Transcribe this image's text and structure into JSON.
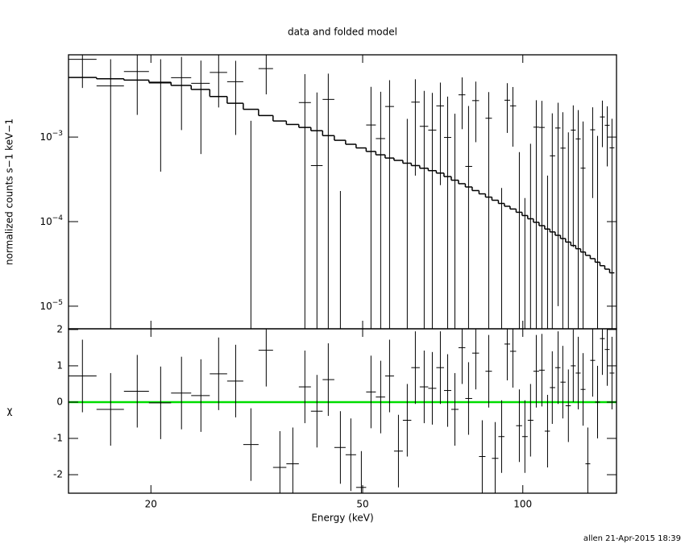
{
  "chart_data": {
    "type": "spectrum",
    "title": "data and folded model",
    "xlabel": "Energy (keV)",
    "log_x": true,
    "xlim": [
      14,
      150
    ],
    "xticks": [
      20,
      50,
      100
    ],
    "x": [
      14.87,
      16.8,
      18.85,
      20.86,
      22.83,
      24.83,
      26.81,
      28.86,
      30.83,
      32.94,
      34.95,
      36.96,
      38.94,
      41.03,
      43.09,
      45.41,
      47.51,
      49.72,
      51.84,
      54.06,
      56.18,
      58.38,
      60.65,
      62.81,
      65.26,
      67.59,
      69.99,
      72.23,
      74.53,
      76.9,
      79.07,
      81.59,
      83.9,
      86.28,
      88.72,
      91.24,
      93.49,
      95.8,
      98.51,
      100.9,
      103.4,
      106.0,
      108.6,
      111.3,
      113.6,
      116.5,
      118.9,
      121.8,
      124.4,
      127.1,
      129.8,
      132.5,
      135.3,
      138.2,
      141.1,
      144.1,
      147.1
    ],
    "panels": [
      {
        "ylabel": "normalized counts s−1 keV−1",
        "log_y": true,
        "ylim": [
          5.4e-06,
          0.0094
        ],
        "yticks": [
          {
            "value": 1e-05,
            "label": "10−5"
          },
          {
            "value": 0.0001,
            "label": "10−4"
          },
          {
            "value": 0.001,
            "label": "10−3"
          }
        ],
        "color": "#000000",
        "model_color": "#000000",
        "values": [
          0.00831,
          0.00403,
          0.00596,
          0.00436,
          0.00504,
          0.00433,
          0.00581,
          0.00452,
          -0.00179,
          0.00645,
          -0.00414,
          -0.00381,
          0.00256,
          0.00046,
          0.00279,
          -0.00252,
          -0.00307,
          -0.00537,
          0.00139,
          0.00096,
          0.0023,
          -0.00264,
          -0.00065,
          0.00259,
          0.00134,
          0.00121,
          0.00234,
          0.00099,
          -8e-05,
          0.00316,
          0.00045,
          0.0027,
          -0.00246,
          0.00167,
          -0.00244,
          -0.0014,
          0.00273,
          0.00234,
          -0.000866,
          -0.0013,
          -0.000617,
          0.00131,
          0.0013,
          -0.00099,
          0.0006,
          0.00128,
          0.00074,
          -6.27e-05,
          0.00121,
          0.000952,
          0.000429,
          -0.00178,
          0.00122,
          3.31e-05,
          0.00173,
          0.00138,
          0.000745
        ],
        "errors": [
          0.0045,
          0.00431,
          0.00413,
          0.00397,
          0.00383,
          0.0037,
          0.00357,
          0.00346,
          0.00335,
          0.00325,
          0.00316,
          0.00307,
          0.00299,
          0.00291,
          0.00283,
          0.00275,
          0.00268,
          0.0026,
          0.00254,
          0.00247,
          0.00241,
          0.00235,
          0.00229,
          0.00224,
          0.00218,
          0.00212,
          0.00207,
          0.00202,
          0.00197,
          0.00192,
          0.00188,
          0.00183,
          0.00178,
          0.00174,
          0.00169,
          0.00165,
          0.00161,
          0.00157,
          0.00153,
          0.00149,
          0.00145,
          0.00142,
          0.00138,
          0.00134,
          0.00131,
          0.00127,
          0.00123,
          0.0012,
          0.00116,
          0.00113,
          0.0011,
          0.00107,
          0.00103,
          0.001,
          0.00097,
          0.00093,
          0.0009
        ],
        "model": [
          0.00507,
          0.00489,
          0.00472,
          0.00444,
          0.00408,
          0.00366,
          0.00302,
          0.00251,
          0.00213,
          0.0018,
          0.00155,
          0.00141,
          0.0013,
          0.00119,
          0.00104,
          0.000916,
          0.000822,
          0.000744,
          0.000676,
          0.000617,
          0.000565,
          0.00053,
          0.000491,
          0.00046,
          0.000428,
          0.000401,
          0.000375,
          0.000341,
          0.000309,
          0.000281,
          0.000257,
          0.000233,
          0.000213,
          0.000195,
          0.000179,
          0.000164,
          0.000152,
          0.000141,
          0.000129,
          0.000118,
          0.000108,
          9.82e-05,
          8.96e-05,
          8.17e-05,
          7.55e-05,
          6.89e-05,
          6.31e-05,
          5.73e-05,
          5.22e-05,
          4.78e-05,
          4.37e-05,
          3.99e-05,
          3.65e-05,
          3.31e-05,
          3.01e-05,
          2.74e-05,
          2.48e-05
        ]
      },
      {
        "ylabel": "χ",
        "log_y": false,
        "ylim": [
          -2.51,
          2.02
        ],
        "yticks": [
          -2,
          -1,
          0,
          1,
          2
        ],
        "color": "#000000",
        "error": 1,
        "reference": 0,
        "reference_color": "#00dd00",
        "values": [
          0.72,
          -0.2,
          0.3,
          -0.02,
          0.25,
          0.18,
          0.78,
          0.58,
          -1.17,
          1.43,
          -1.8,
          -1.7,
          0.42,
          -0.25,
          0.62,
          -1.25,
          -1.45,
          -2.35,
          0.28,
          0.14,
          0.72,
          -1.35,
          -0.5,
          0.95,
          0.42,
          0.38,
          0.95,
          0.32,
          -0.2,
          1.5,
          0.1,
          1.35,
          -1.5,
          0.85,
          -1.55,
          -0.95,
          1.6,
          1.4,
          -0.65,
          -0.95,
          -0.5,
          0.85,
          0.88,
          -0.8,
          0.4,
          0.95,
          0.55,
          -0.1,
          1.0,
          0.8,
          0.35,
          -1.7,
          1.15,
          0.0,
          1.75,
          1.45,
          0.8
        ]
      }
    ]
  },
  "footer": "allen 21-Apr-2015 18:39"
}
